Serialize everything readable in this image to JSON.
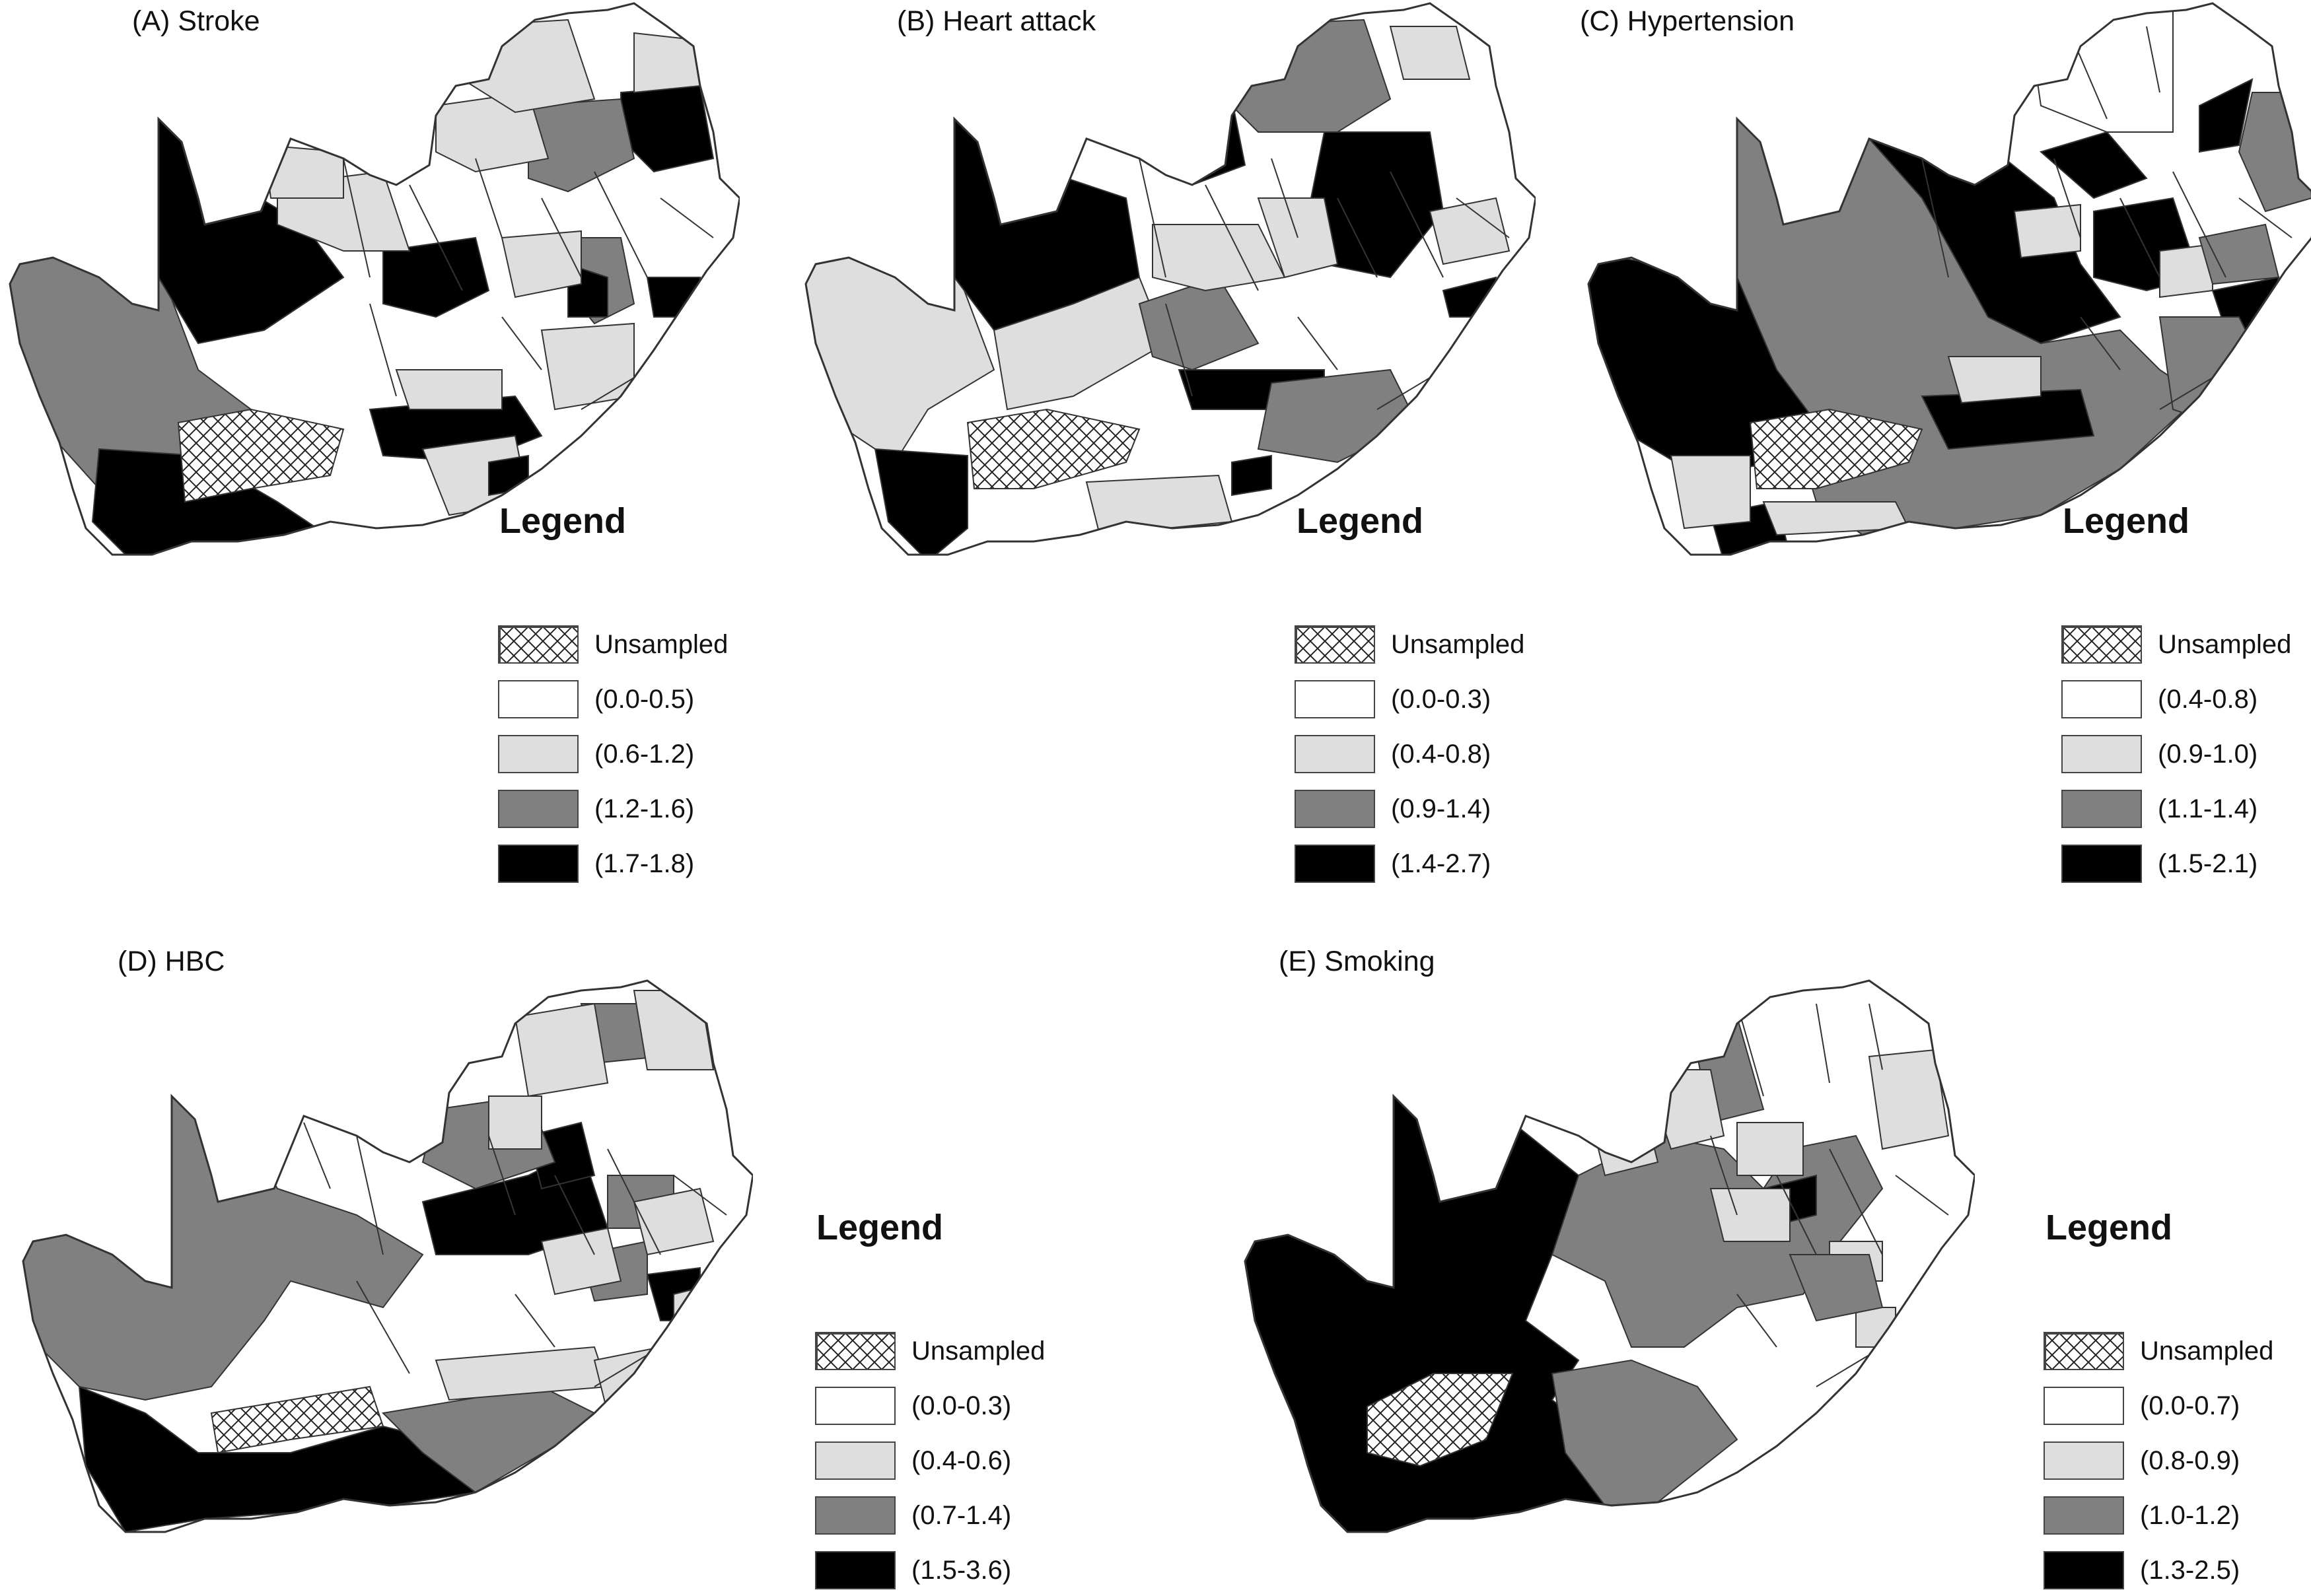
{
  "colors": {
    "class_0": "#ffffff",
    "class_1": "#dedede",
    "class_2": "#808080",
    "class_3": "#000000",
    "unsampled": "crosshatch"
  },
  "legend_title": "Legend",
  "unsampled_label": "Unsampled",
  "panels": [
    {
      "title": "(A) Stroke",
      "classes": [
        "(0.0-0.5)",
        "(0.6-1.2)",
        "(1.2-1.6)",
        "(1.7-1.8)"
      ]
    },
    {
      "title": "(B) Heart attack",
      "classes": [
        "(0.0-0.3)",
        "(0.4-0.8)",
        "(0.9-1.4)",
        "(1.4-2.7)"
      ]
    },
    {
      "title": "(C) Hypertension",
      "classes": [
        "(0.4-0.8)",
        "(0.9-1.0)",
        "(1.1-1.4)",
        "(1.5-2.1)"
      ]
    },
    {
      "title": "(D) HBC",
      "classes": [
        "(0.0-0.3)",
        "(0.4-0.6)",
        "(0.7-1.4)",
        "(1.5-3.6)"
      ]
    },
    {
      "title": "(E) Smoking",
      "classes": [
        "(0.0-0.7)",
        "(0.8-0.9)",
        "(1.0-1.2)",
        "(1.3-2.5)"
      ]
    }
  ]
}
